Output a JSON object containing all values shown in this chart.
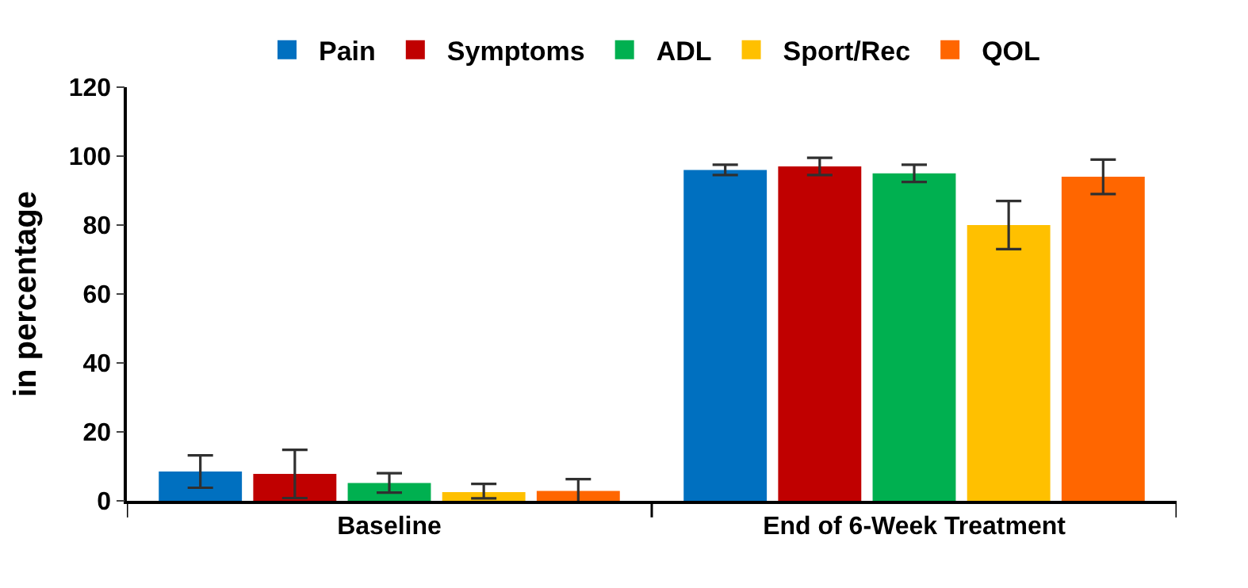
{
  "chart_data": {
    "type": "bar",
    "ylabel": "in percentage",
    "categories": [
      "Baseline",
      "End of 6-Week Treatment"
    ],
    "series": [
      {
        "name": "Pain",
        "color": "#0070c0",
        "values": [
          8.5,
          96
        ],
        "errors": [
          4.7,
          1.5
        ]
      },
      {
        "name": "Symptoms",
        "color": "#c00000",
        "values": [
          7.8,
          97
        ],
        "errors": [
          7,
          2.5
        ]
      },
      {
        "name": "ADL",
        "color": "#00b050",
        "values": [
          5.2,
          95
        ],
        "errors": [
          2.8,
          2.5
        ]
      },
      {
        "name": "Sport/Rec",
        "color": "#ffc000",
        "values": [
          2.5,
          80
        ],
        "errors": [
          [
            1.8,
            2.4
          ],
          7
        ]
      },
      {
        "name": "QOL",
        "color": "#ff6600",
        "values": [
          2.9,
          94
        ],
        "errors": [
          3.4,
          5
        ]
      }
    ],
    "ylim": [
      0,
      120
    ],
    "yticks": [
      0,
      20,
      40,
      60,
      80,
      100,
      120
    ],
    "legend": "top"
  }
}
